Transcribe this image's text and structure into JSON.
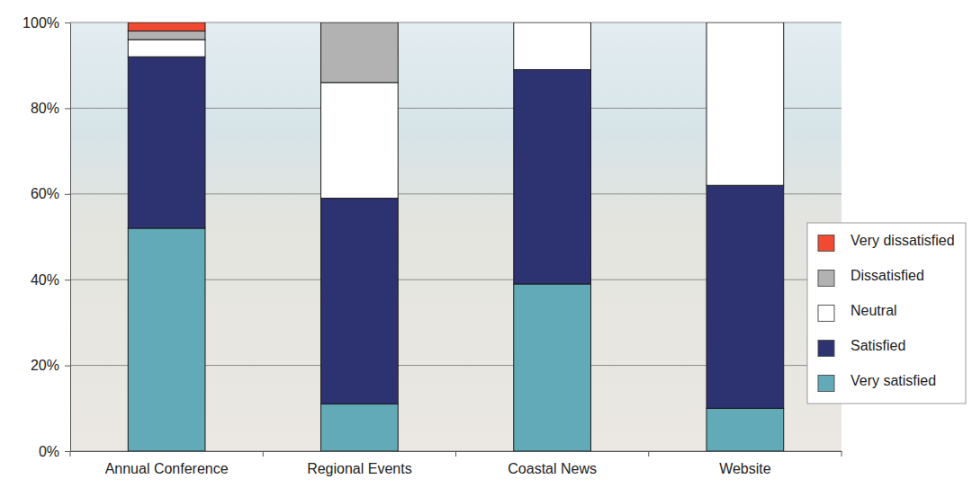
{
  "chart_data": {
    "type": "bar",
    "stacked": true,
    "categories": [
      "Annual Conference",
      "Regional Events",
      "Coastal News",
      "Website"
    ],
    "series": [
      {
        "name": "Very satisfied",
        "color": "#62aab8",
        "values": [
          52,
          11,
          39,
          10
        ]
      },
      {
        "name": "Satisfied",
        "color": "#2d3270",
        "values": [
          40,
          48,
          50,
          52
        ]
      },
      {
        "name": "Neutral",
        "color": "#ffffff",
        "values": [
          4,
          27,
          11,
          38
        ]
      },
      {
        "name": "Dissatisfied",
        "color": "#b2b2b2",
        "values": [
          2,
          14,
          0,
          0
        ]
      },
      {
        "name": "Very dissatisfied",
        "color": "#f04a32",
        "values": [
          2,
          0,
          0,
          0
        ]
      }
    ],
    "ylim": [
      0,
      100
    ],
    "yticks": [
      {
        "value": 0,
        "label": "0%"
      },
      {
        "value": 20,
        "label": "20%"
      },
      {
        "value": 40,
        "label": "40%"
      },
      {
        "value": 60,
        "label": "60%"
      },
      {
        "value": 80,
        "label": "80%"
      },
      {
        "value": 100,
        "label": "100%"
      }
    ],
    "grid": true,
    "legend": "right"
  }
}
